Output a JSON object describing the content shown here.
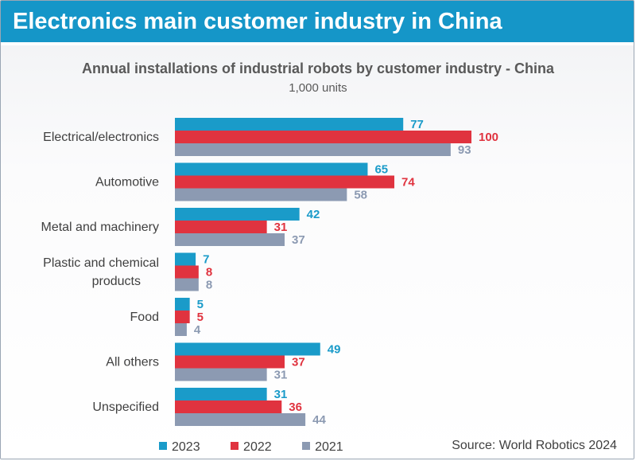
{
  "header": {
    "title": "Electronics main customer industry in China"
  },
  "source": "Source: World Robotics 2024",
  "chart_data": {
    "type": "bar",
    "orientation": "horizontal",
    "title": "Annual installations of industrial robots by customer industry  - China",
    "subtitle": "1,000 units",
    "categories": [
      "Electrical/electronics",
      "Automotive",
      "Metal and machinery",
      "Plastic and chemical products",
      "Food",
      "All others",
      "Unspecified"
    ],
    "series": [
      {
        "name": "2023",
        "color": "#1a9bc9",
        "values": [
          77,
          65,
          42,
          7,
          5,
          49,
          31
        ]
      },
      {
        "name": "2022",
        "color": "#e0333f",
        "values": [
          100,
          74,
          31,
          8,
          5,
          37,
          36
        ]
      },
      {
        "name": "2021",
        "color": "#8c9ab2",
        "values": [
          93,
          58,
          37,
          8,
          4,
          31,
          44
        ]
      }
    ],
    "xlim": [
      0,
      100
    ],
    "grid": false,
    "legend_position": "bottom-left"
  }
}
